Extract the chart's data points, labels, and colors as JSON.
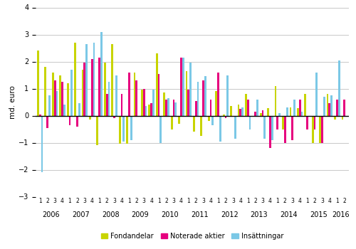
{
  "ylabel": "md. euro",
  "ylim": [
    -3,
    4
  ],
  "yticks": [
    -3,
    -2,
    -1,
    0,
    1,
    2,
    3,
    4
  ],
  "colors": {
    "fondandelar": "#c8d400",
    "noterade_aktier": "#e6007e",
    "insattningar": "#7bc8e6"
  },
  "quarters": [
    "1",
    "2",
    "3",
    "4",
    "1",
    "2",
    "3",
    "4",
    "1",
    "2",
    "3",
    "4",
    "1",
    "2",
    "3",
    "4",
    "1",
    "2",
    "3",
    "4",
    "1",
    "2",
    "3",
    "4",
    "1",
    "2",
    "3",
    "4",
    "1",
    "2",
    "3",
    "4",
    "1",
    "2",
    "3",
    "4",
    "1",
    "2",
    "3",
    "4",
    "1",
    "2"
  ],
  "years": [
    2006,
    2007,
    2008,
    2009,
    2010,
    2011,
    2012,
    2013,
    2014,
    2015,
    2016
  ],
  "year_quarter_starts": [
    0,
    4,
    8,
    12,
    16,
    20,
    24,
    28,
    32,
    36,
    40
  ],
  "fondandelar": [
    2.4,
    1.8,
    1.6,
    1.5,
    1.2,
    2.7,
    1.7,
    -0.15,
    -1.1,
    1.95,
    2.65,
    -1.05,
    -1.05,
    1.6,
    0.95,
    0.4,
    2.3,
    0.85,
    -0.5,
    -0.3,
    1.65,
    -0.6,
    -0.75,
    -0.2,
    0.9,
    0.05,
    0.35,
    0.4,
    0.8,
    -0.05,
    0.1,
    0.28,
    1.1,
    -0.5,
    0.3,
    0.27,
    0.8,
    -1.0,
    -1.0,
    0.8,
    -0.15,
    -0.15
  ],
  "noterade_aktier": [
    0.05,
    -0.45,
    1.3,
    1.25,
    -0.35,
    -0.4,
    1.95,
    2.1,
    2.15,
    0.8,
    -0.1,
    0.8,
    1.6,
    1.3,
    1.0,
    0.45,
    1.55,
    0.6,
    0.6,
    2.15,
    0.95,
    0.55,
    1.3,
    0.6,
    1.6,
    -0.1,
    0.0,
    0.25,
    0.6,
    0.15,
    0.2,
    -1.2,
    -0.5,
    -1.0,
    -0.9,
    0.6,
    -0.5,
    -0.5,
    -1.0,
    0.45,
    0.6,
    0.6
  ],
  "insattningar": [
    -2.1,
    0.75,
    0.9,
    0.4,
    1.7,
    0.45,
    2.65,
    2.7,
    3.1,
    1.25,
    1.5,
    -0.95,
    -0.9,
    0.0,
    0.35,
    0.95,
    -1.0,
    0.65,
    0.5,
    2.15,
    1.95,
    1.25,
    1.45,
    -0.35,
    -0.95,
    1.5,
    -0.85,
    0.3,
    -0.5,
    0.6,
    -0.85,
    -0.9,
    0.1,
    0.3,
    0.6,
    0.15,
    0.0,
    1.6,
    0.7,
    0.75,
    2.05,
    0.0
  ],
  "legend_labels": [
    "Fondandelar",
    "Noterade aktier",
    "Insättningar"
  ],
  "background_color": "#ffffff",
  "grid_color": "#c8c8c8"
}
